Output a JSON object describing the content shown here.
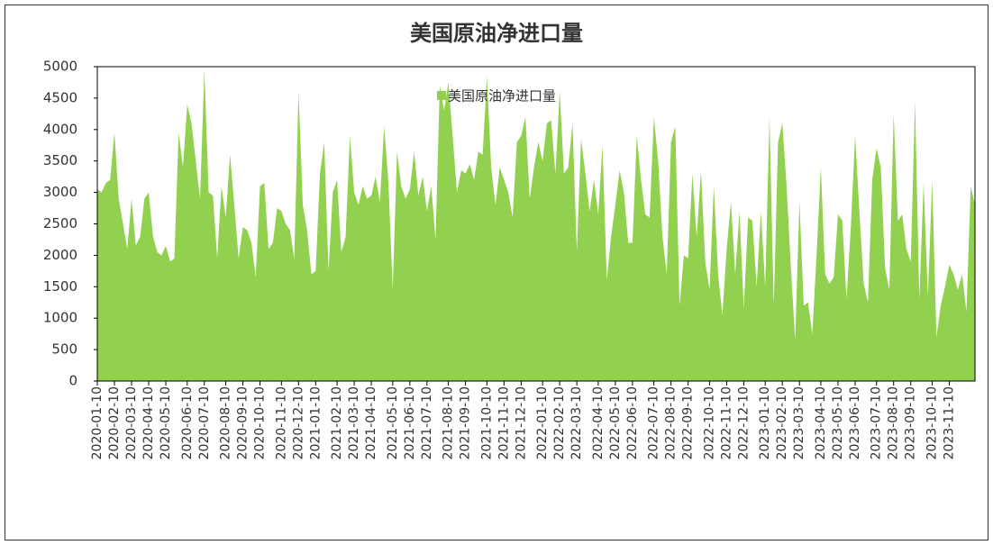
{
  "chart_data": {
    "type": "area",
    "title": "美国原油净进口量",
    "series": [
      {
        "name": "美国原油净进口量",
        "color": "#92d050",
        "values": [
          3050,
          3000,
          3150,
          3200,
          3950,
          2900,
          2500,
          2100,
          2900,
          2150,
          2300,
          2900,
          3000,
          2300,
          2050,
          2000,
          2150,
          1900,
          1950,
          3950,
          3400,
          4400,
          4100,
          3500,
          2900,
          4950,
          3000,
          2950,
          1950,
          3100,
          2600,
          3600,
          2800,
          1950,
          2450,
          2400,
          2200,
          1650,
          3100,
          3150,
          2100,
          2200,
          2750,
          2700,
          2500,
          2400,
          1950,
          4600,
          2800,
          2400,
          1700,
          1750,
          3300,
          3800,
          1750,
          3000,
          3200,
          2050,
          2300,
          3900,
          3000,
          2800,
          3100,
          2900,
          2950,
          3250,
          2850,
          4050,
          3150,
          1450,
          3650,
          3100,
          2900,
          3050,
          3650,
          2950,
          3250,
          2700,
          3100,
          2250,
          4700,
          4300,
          4750,
          3900,
          3000,
          3350,
          3300,
          3450,
          3200,
          3650,
          3600,
          4850,
          3400,
          2800,
          3400,
          3200,
          3000,
          2600,
          3800,
          3900,
          4200,
          2900,
          3400,
          3800,
          3500,
          4100,
          4150,
          3300,
          4600,
          3300,
          3400,
          4100,
          2050,
          3850,
          3300,
          2700,
          3200,
          2650,
          3750,
          1600,
          2300,
          2800,
          3350,
          3000,
          2200,
          2200,
          3900,
          3200,
          2650,
          2600,
          4200,
          3500,
          2300,
          1700,
          3800,
          4050,
          1200,
          2000,
          1950,
          3300,
          2300,
          3350,
          1900,
          1450,
          3100,
          1700,
          1050,
          2100,
          2850,
          1700,
          2700,
          1150,
          2600,
          2550,
          1500,
          2700,
          1500,
          4200,
          1200,
          3800,
          4100,
          3100,
          1800,
          650,
          2850,
          1200,
          1250,
          750,
          2000,
          3400,
          1700,
          1550,
          1650,
          2650,
          2550,
          1300,
          2450,
          3900,
          2700,
          1550,
          1250,
          3200,
          3700,
          3400,
          1800,
          1450,
          4250,
          2550,
          2650,
          2100,
          1900,
          4450,
          1300,
          3150,
          1350,
          3200,
          700,
          1200,
          1500,
          1850,
          1700,
          1450,
          1700,
          1100,
          3100,
          2800
        ]
      }
    ],
    "categories": [
      "2020-01-10",
      null,
      null,
      null,
      "2020-02-10",
      null,
      null,
      null,
      "2020-03-10",
      null,
      null,
      null,
      "2020-04-10",
      null,
      null,
      null,
      "2020-05-10",
      null,
      null,
      null,
      null,
      "2020-06-10",
      null,
      null,
      null,
      "2020-07-10",
      null,
      null,
      null,
      null,
      "2020-08-10",
      null,
      null,
      null,
      "2020-09-10",
      null,
      null,
      null,
      "2020-10-10",
      null,
      null,
      null,
      null,
      "2020-11-10",
      null,
      null,
      null,
      "2020-12-10",
      null,
      null,
      null,
      "2021-01-10",
      null,
      null,
      null,
      null,
      "2021-02-10",
      null,
      null,
      null,
      "2021-03-10",
      null,
      null,
      null,
      "2021-04-10",
      null,
      null,
      null,
      null,
      "2021-05-10",
      null,
      null,
      null,
      "2021-06-10",
      null,
      null,
      null,
      "2021-07-10",
      null,
      null,
      null,
      null,
      "2021-08-10",
      null,
      null,
      null,
      "2021-09-10",
      null,
      null,
      null,
      null,
      "2021-10-10",
      null,
      null,
      null,
      "2021-11-10",
      null,
      null,
      null,
      "2021-12-10",
      null,
      null,
      null,
      null,
      "2022-01-10",
      null,
      null,
      null,
      "2022-02-10",
      null,
      null,
      null,
      "2022-03-10",
      null,
      null,
      null,
      null,
      "2022-04-10",
      null,
      null,
      null,
      "2022-05-10",
      null,
      null,
      null,
      "2022-06-10",
      null,
      null,
      null,
      null,
      "2022-07-10",
      null,
      null,
      null,
      "2022-08-10",
      null,
      null,
      null,
      "2022-09-10",
      null,
      null,
      null,
      null,
      "2022-10-10",
      null,
      null,
      null,
      "2022-11-10",
      null,
      null,
      null,
      "2022-12-10",
      null,
      null,
      null,
      null,
      "2023-01-10",
      null,
      null,
      null,
      "2023-02-10",
      null,
      null,
      null,
      "2023-03-10",
      null,
      null,
      null,
      null,
      "2023-04-10",
      null,
      null,
      null,
      "2023-05-10",
      null,
      null,
      null,
      "2023-06-10",
      null,
      null,
      null,
      null,
      "2023-07-10",
      null,
      null,
      null,
      "2023-08-10",
      null,
      null,
      null,
      "2023-09-10",
      null,
      null,
      null,
      null,
      "2023-10-10",
      null,
      null,
      null,
      "2023-11-10",
      null,
      null,
      null,
      null,
      null,
      null
    ],
    "ylim": [
      0,
      5000
    ],
    "yticks": [
      0,
      500,
      1000,
      1500,
      2000,
      2500,
      3000,
      3500,
      4000,
      4500,
      5000
    ],
    "legend": "top"
  }
}
